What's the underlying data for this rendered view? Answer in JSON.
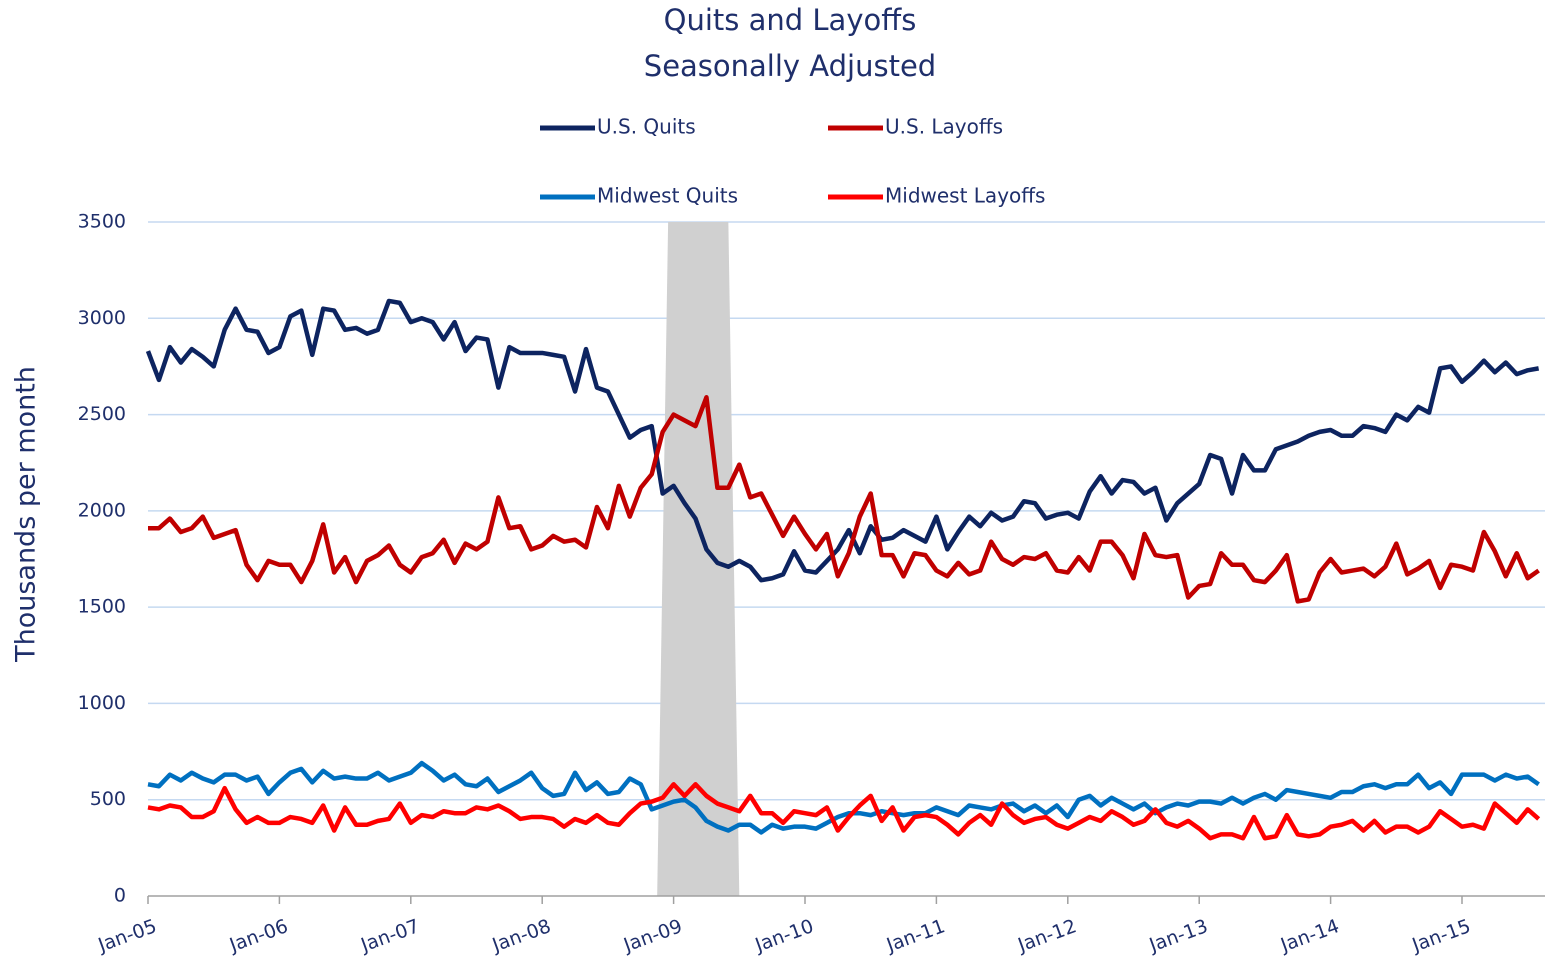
{
  "chart_data": {
    "type": "line",
    "title": "Quits and Layoffs",
    "subtitle": "Seasonally Adjusted",
    "y_label": "Thousands per month",
    "categories": [
      "Jan-05",
      null,
      null,
      null,
      null,
      null,
      null,
      null,
      null,
      null,
      null,
      null,
      "Jan-06",
      null,
      null,
      null,
      null,
      null,
      null,
      null,
      null,
      null,
      null,
      null,
      "Jan-07",
      null,
      null,
      null,
      null,
      null,
      null,
      null,
      null,
      null,
      null,
      null,
      "Jan-08",
      null,
      null,
      null,
      null,
      null,
      null,
      null,
      null,
      null,
      null,
      null,
      "Jan-09",
      null,
      null,
      null,
      null,
      null,
      null,
      null,
      null,
      null,
      null,
      null,
      "Jan-10",
      null,
      null,
      null,
      null,
      null,
      null,
      null,
      null,
      null,
      null,
      null,
      "Jan-11",
      null,
      null,
      null,
      null,
      null,
      null,
      null,
      null,
      null,
      null,
      null,
      "Jan-12",
      null,
      null,
      null,
      null,
      null,
      null,
      null,
      null,
      null,
      null,
      null,
      "Jan-13",
      null,
      null,
      null,
      null,
      null,
      null,
      null,
      null,
      null,
      null,
      null,
      "Jan-14",
      null,
      null,
      null,
      null,
      null,
      null,
      null,
      null,
      null,
      null,
      null,
      "Jan-15",
      null,
      null,
      null,
      null,
      null,
      null,
      null
    ],
    "series": [
      {
        "name": "U.S. Quits",
        "color": "#0d2460",
        "values": [
          2830,
          2680,
          2850,
          2770,
          2840,
          2800,
          2750,
          2940,
          3050,
          2940,
          2930,
          2820,
          2850,
          3010,
          3040,
          2810,
          3050,
          3040,
          2940,
          2950,
          2920,
          2940,
          3090,
          3080,
          2980,
          3000,
          2980,
          2890,
          2980,
          2830,
          2900,
          2890,
          2640,
          2850,
          2820,
          2820,
          2820,
          2810,
          2800,
          2620,
          2840,
          2640,
          2620,
          2500,
          2380,
          2420,
          2440,
          2090,
          2130,
          2040,
          1960,
          1800,
          1730,
          1710,
          1740,
          1710,
          1640,
          1650,
          1670,
          1790,
          1690,
          1680,
          1740,
          1800,
          1900,
          1780,
          1920,
          1850,
          1860,
          1900,
          1870,
          1840,
          1970,
          1800,
          1890,
          1970,
          1920,
          1990,
          1950,
          1970,
          2050,
          2040,
          1960,
          1980,
          1990,
          1960,
          2100,
          2180,
          2090,
          2160,
          2150,
          2090,
          2120,
          1950,
          2040,
          2090,
          2140,
          2290,
          2270,
          2090,
          2290,
          2210,
          2210,
          2320,
          2340,
          2360,
          2390,
          2410,
          2420,
          2390,
          2390,
          2440,
          2430,
          2410,
          2500,
          2470,
          2540,
          2510,
          2740,
          2750,
          2670,
          2720,
          2780,
          2720,
          2770,
          2710,
          2730,
          2740
        ]
      },
      {
        "name": "U.S. Layoffs",
        "color": "#c00000",
        "values": [
          1910,
          1910,
          1960,
          1890,
          1910,
          1970,
          1860,
          1880,
          1900,
          1720,
          1640,
          1740,
          1720,
          1720,
          1630,
          1740,
          1930,
          1680,
          1760,
          1630,
          1740,
          1770,
          1820,
          1720,
          1680,
          1760,
          1780,
          1850,
          1730,
          1830,
          1800,
          1840,
          2070,
          1910,
          1920,
          1800,
          1820,
          1870,
          1840,
          1850,
          1810,
          2020,
          1910,
          2130,
          1970,
          2120,
          2190,
          2410,
          2500,
          2470,
          2440,
          2590,
          2120,
          2120,
          2240,
          2070,
          2090,
          1980,
          1870,
          1970,
          1880,
          1800,
          1880,
          1660,
          1780,
          1970,
          2090,
          1770,
          1770,
          1660,
          1780,
          1770,
          1690,
          1660,
          1730,
          1670,
          1690,
          1840,
          1750,
          1720,
          1760,
          1750,
          1780,
          1690,
          1680,
          1760,
          1690,
          1840,
          1840,
          1770,
          1650,
          1880,
          1770,
          1760,
          1770,
          1550,
          1610,
          1620,
          1780,
          1720,
          1720,
          1640,
          1630,
          1690,
          1770,
          1530,
          1540,
          1680,
          1750,
          1680,
          1690,
          1700,
          1660,
          1710,
          1830,
          1670,
          1700,
          1740,
          1600,
          1720,
          1710,
          1690,
          1890,
          1790,
          1660,
          1780,
          1650,
          1690
        ]
      },
      {
        "name": "Midwest Quits",
        "color": "#0070c0",
        "values": [
          580,
          570,
          630,
          600,
          640,
          610,
          590,
          630,
          630,
          600,
          620,
          530,
          590,
          640,
          660,
          590,
          650,
          610,
          620,
          610,
          610,
          640,
          600,
          620,
          640,
          690,
          650,
          600,
          630,
          580,
          570,
          610,
          540,
          570,
          600,
          640,
          560,
          520,
          530,
          640,
          550,
          590,
          530,
          540,
          610,
          580,
          450,
          470,
          490,
          500,
          460,
          390,
          360,
          340,
          370,
          370,
          330,
          370,
          350,
          360,
          360,
          350,
          380,
          410,
          430,
          430,
          420,
          440,
          430,
          420,
          430,
          430,
          460,
          440,
          420,
          470,
          460,
          450,
          470,
          480,
          440,
          470,
          430,
          470,
          410,
          500,
          520,
          470,
          510,
          480,
          450,
          480,
          430,
          460,
          480,
          470,
          490,
          490,
          480,
          510,
          480,
          510,
          530,
          500,
          550,
          540,
          530,
          520,
          510,
          540,
          540,
          570,
          580,
          560,
          580,
          580,
          630,
          560,
          590,
          530,
          630,
          630,
          630,
          600,
          630,
          610,
          620,
          580
        ]
      },
      {
        "name": "Midwest Layoffs",
        "color": "#ff0000",
        "values": [
          460,
          450,
          470,
          460,
          410,
          410,
          440,
          560,
          450,
          380,
          410,
          380,
          380,
          410,
          400,
          380,
          470,
          340,
          460,
          370,
          370,
          390,
          400,
          480,
          380,
          420,
          410,
          440,
          430,
          430,
          460,
          450,
          470,
          440,
          400,
          410,
          410,
          400,
          360,
          400,
          380,
          420,
          380,
          370,
          430,
          480,
          490,
          510,
          580,
          520,
          580,
          520,
          480,
          460,
          440,
          520,
          430,
          430,
          380,
          440,
          430,
          420,
          460,
          340,
          410,
          470,
          520,
          390,
          460,
          340,
          410,
          420,
          410,
          370,
          320,
          380,
          420,
          370,
          480,
          420,
          380,
          400,
          410,
          370,
          350,
          380,
          410,
          390,
          440,
          410,
          370,
          390,
          450,
          380,
          360,
          390,
          350,
          300,
          320,
          320,
          300,
          410,
          300,
          310,
          420,
          320,
          310,
          320,
          360,
          370,
          390,
          340,
          390,
          330,
          360,
          360,
          330,
          360,
          440,
          400,
          360,
          370,
          350,
          480,
          430,
          380,
          450,
          400
        ]
      }
    ],
    "shaded_span": [
      47,
      54
    ],
    "shade_color": "#d0d0d0",
    "ylim": [
      0,
      3500
    ],
    "yticks": [
      0,
      500,
      1000,
      1500,
      2000,
      2500,
      3000,
      3500
    ],
    "grid": true
  }
}
